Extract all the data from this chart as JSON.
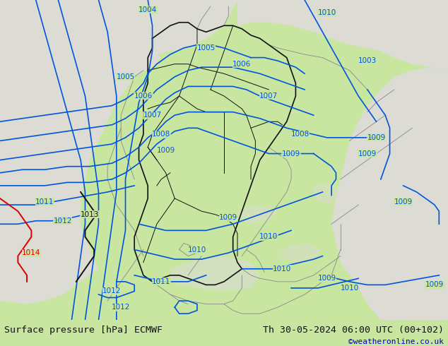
{
  "title_left": "Surface pressure [hPa] ECMWF",
  "title_right": "Th 30-05-2024 06:00 UTC (00+102)",
  "copyright": "©weatheronline.co.uk",
  "bg_green": "#c8e6a0",
  "bg_gray": "#d0cfc8",
  "bg_sea": "#dcdcd4",
  "border_color_black": "#111111",
  "border_color_gray": "#888888",
  "isobar_blue": "#0055dd",
  "isobar_black": "#111111",
  "isobar_red": "#dd0000",
  "bottom_bar_color": "#c8c8c8",
  "bottom_text_color": "#111111",
  "copyright_color": "#0000cc",
  "fig_width": 6.34,
  "fig_height": 4.9,
  "dpi": 100
}
